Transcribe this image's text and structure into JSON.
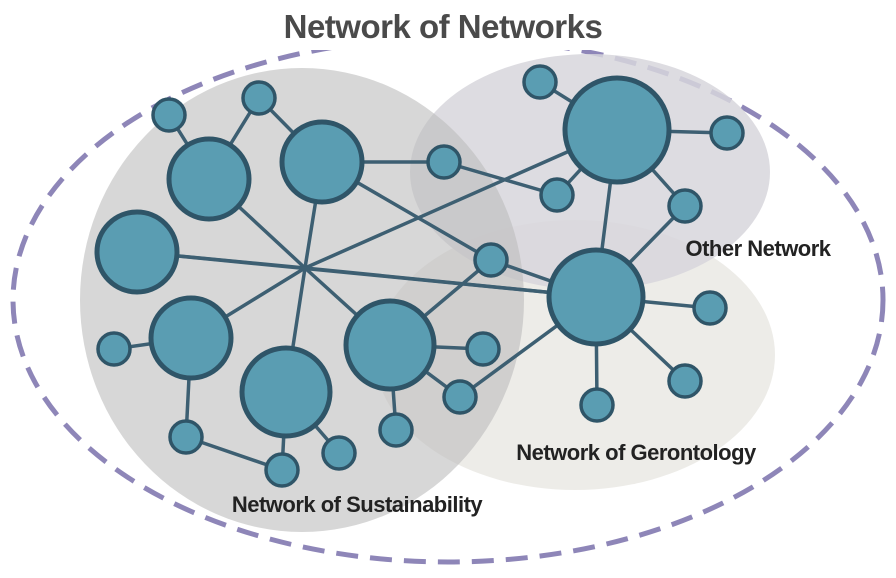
{
  "title": "Network of Networks",
  "clusters": [
    {
      "id": "sustainability",
      "label": "Network of Sustainability"
    },
    {
      "id": "gerontology",
      "label": "Network of Gerontology"
    },
    {
      "id": "other",
      "label": "Other Network"
    }
  ],
  "colors": {
    "node_fill": "#5a9db2",
    "node_stroke": "#2f5568",
    "edge": "#3d5f72",
    "outer_boundary": "#8e86b8",
    "sustainability_region": "#cfcfcf",
    "gerontology_region": "#ecebe7",
    "other_region": "#dcdbe0"
  }
}
